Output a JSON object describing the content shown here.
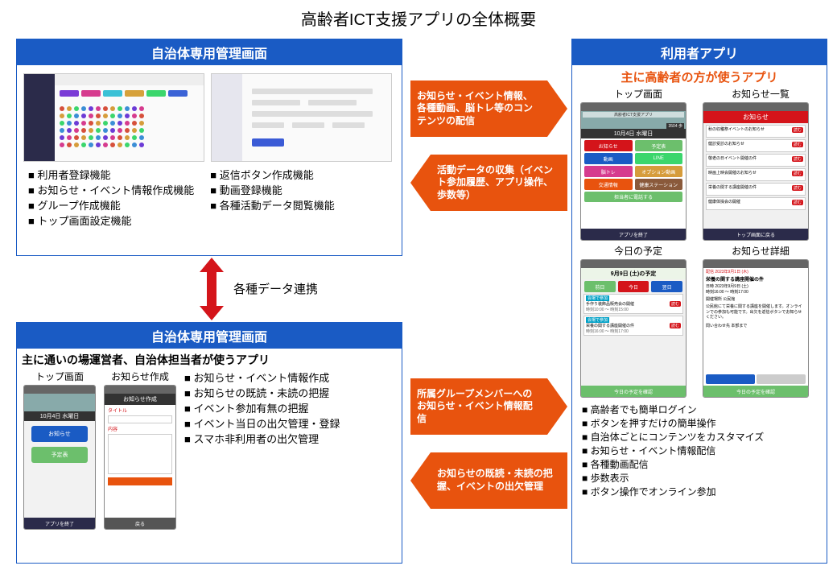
{
  "title": "高齢者ICT支援アプリの全体概要",
  "colors": {
    "blue": "#1a5bc4",
    "orange": "#e8530e",
    "red": "#d4141a",
    "green": "#6cbf6c"
  },
  "admin_box": {
    "header": "自治体専用管理画面",
    "screenshot1": {
      "tags": [
        "#7a3bd6",
        "#d63b8e",
        "#3bc1d6",
        "#d6a13b",
        "#3bd66c",
        "#3b63d6"
      ],
      "dot_colors": [
        "#d6503b",
        "#d69c3b",
        "#3bd66c",
        "#3b8ed6",
        "#6c3bd6",
        "#d63b8e"
      ]
    },
    "list_left": [
      "利用者登録機能",
      "お知らせ・イベント情報作成機能",
      "グループ作成機能",
      "トップ画面設定機能"
    ],
    "list_right": [
      "返信ボタン作成機能",
      "動画登録機能",
      "各種活動データ閲覧機能"
    ]
  },
  "link_label": "各種データ連携",
  "ops_box": {
    "header": "自治体専用管理画面",
    "subtitle": "主に通いの場運営者、自治体担当者が使うアプリ",
    "phone1": {
      "label": "トップ画面",
      "date": "10月4日 水曜日",
      "btn1": "お知らせ",
      "btn2": "予定表",
      "btn1_color": "#1a5bc4",
      "btn2_color": "#6cbf6c",
      "foot": "アプリを終了"
    },
    "phone2": {
      "label": "お知らせ作成",
      "title": "お知らせ作成",
      "field1": "タイトル",
      "field2": "内容",
      "bottom": "戻る"
    },
    "bullets": [
      "お知らせ・イベント情報作成",
      "お知らせの既読・未読の把握",
      "イベント参加有無の把握",
      "イベント当日の出欠管理・登録",
      "スマホ非利用者の出欠管理"
    ]
  },
  "user_box": {
    "header": "利用者アプリ",
    "subtitle": "主に高齢者の方が使うアプリ",
    "phone1": {
      "label": "トップ画面",
      "banner": "高齢者ICT支援アプリ",
      "count": "3504 歩",
      "date": "10月4日 水曜日",
      "buttons": [
        {
          "l": "お知らせ",
          "c": "#d4141a"
        },
        {
          "l": "予定表",
          "c": "#6cbf6c"
        },
        {
          "l": "動画",
          "c": "#1a5bc4"
        },
        {
          "l": "LINE",
          "c": "#3bd66c"
        },
        {
          "l": "脳トレ",
          "c": "#d63b8e"
        },
        {
          "l": "オプション動画",
          "c": "#d69c3b"
        },
        {
          "l": "交通情報",
          "c": "#e8530e"
        },
        {
          "l": "健康ステーション",
          "c": "#8a5a3b"
        }
      ],
      "call": "担当者に電話する",
      "foot": "アプリを終了"
    },
    "phone2": {
      "label": "お知らせ一覧",
      "head": "お知らせ",
      "items": [
        "秋の収穫祭イベントのお知らせ",
        "健診受診のお知らせ",
        "敬老の日イベント開催の件",
        "映画上映会開催のお知らせ",
        "栄養の関する講座開催の件",
        "健康体操会の開催"
      ],
      "foot": "トップ画面に戻る"
    },
    "phone3": {
      "label": "今日の予定",
      "date": "9月9日 (土)の予定",
      "tabs": [
        "前日",
        "今日",
        "翌日"
      ],
      "tab_colors": [
        "#6cbf6c",
        "#d4141a",
        "#1a5bc4"
      ],
      "items": [
        {
          "tag": "会場で参加",
          "t": "手作り装飾品販売会の開催",
          "time": "時刻10:00 ～ 時刻15:00"
        },
        {
          "tag": "会場で参加",
          "t": "栄養の関する講座開催の件",
          "time": "時刻16:00 ～ 時刻17:00"
        }
      ],
      "foot": "今日の予定を確認"
    },
    "phone4": {
      "label": "お知らせ詳細",
      "meta": "配信 2023年9月1日 (木)",
      "title": "栄養の関する講座開催の件",
      "dt": "日時 2023年9月9日 (土)\n時刻16:00 ～ 時刻17:00",
      "place": "開催場所 公民館",
      "body": "公民館にて栄養に関する講座を開催します。オンラインでの参加も可能です。出欠を返信ボタンでお知らせください。",
      "contact": "問い合わせ先 本部まで",
      "foot": "今日の予定を確認"
    },
    "bullets": [
      "高齢者でも簡単ログイン",
      "ボタンを押すだけの簡単操作",
      "自治体ごとにコンテンツをカスタマイズ",
      "お知らせ・イベント情報配信",
      "各種動画配信",
      "歩数表示",
      "ボタン操作でオンライン参加"
    ]
  },
  "arrows": {
    "a1": "お知らせ・イベント情報、各種動画、脳トレ等のコンテンツの配信",
    "a2": "活動データの収集（イベント参加履歴、アプリ操作、歩数等）",
    "a3": "所属グループメンバーへのお知らせ・イベント情報配信",
    "a4": "お知らせの既読・未読の把握、イベントの出欠管理"
  }
}
